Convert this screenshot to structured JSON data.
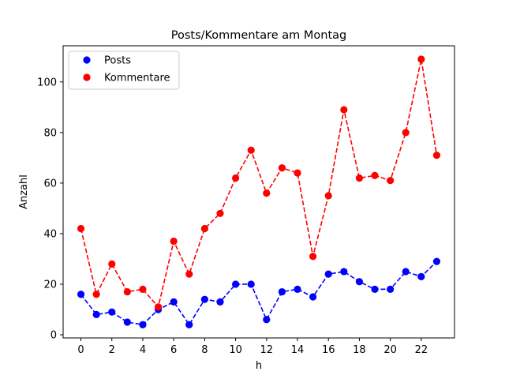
{
  "chart_data": {
    "type": "line",
    "title": "Posts/Kommentare am Montag",
    "xlabel": "h",
    "ylabel": "Anzahl",
    "x": [
      0,
      1,
      2,
      3,
      4,
      5,
      6,
      7,
      8,
      9,
      10,
      11,
      12,
      13,
      14,
      15,
      16,
      17,
      18,
      19,
      20,
      21,
      22,
      23
    ],
    "xlim": [
      -1.15,
      24.15
    ],
    "ylim": [
      -1.25,
      114.3
    ],
    "xticks": [
      "0",
      "2",
      "4",
      "6",
      "8",
      "10",
      "12",
      "14",
      "16",
      "18",
      "20",
      "22"
    ],
    "yticks": [
      "0",
      "20",
      "40",
      "60",
      "80",
      "100"
    ],
    "grid": false,
    "legend_position": "top-left",
    "series": [
      {
        "name": "Posts",
        "color": "#0000ff",
        "line_style": "dashed",
        "marker": "circle",
        "values": [
          16,
          8,
          9,
          5,
          4,
          10,
          13,
          4,
          14,
          13,
          20,
          20,
          6,
          17,
          18,
          15,
          24,
          25,
          21,
          18,
          18,
          25,
          23,
          29
        ]
      },
      {
        "name": "Kommentare",
        "color": "#ff0000",
        "line_style": "dashed",
        "marker": "circle",
        "values": [
          42,
          16,
          28,
          17,
          18,
          11,
          37,
          24,
          42,
          48,
          62,
          73,
          56,
          66,
          64,
          31,
          55,
          89,
          62,
          63,
          61,
          80,
          109,
          71
        ]
      }
    ]
  }
}
